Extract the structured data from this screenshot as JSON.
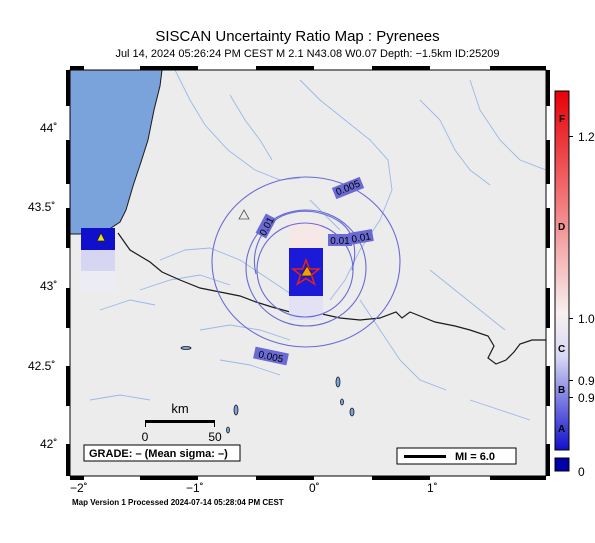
{
  "header": {
    "title": "SISCAN Uncertainty Ratio Map : Pyrenees",
    "subtitle": "Jul 14, 2024 05:26:24 PM CEST   M 2.1   N43.08 W0.07   Depth: −1.5km   ID:25209"
  },
  "map": {
    "lat_labels": [
      "44˚",
      "43.5˚",
      "43˚",
      "42.5˚",
      "42˚"
    ],
    "lon_labels": [
      "−2˚",
      "−1˚",
      "0˚",
      "1˚"
    ],
    "contour_labels": [
      "0.005",
      "0.01",
      "0.01",
      "0.01",
      "0.005"
    ],
    "scale": {
      "title": "km",
      "left": "0",
      "right": "50"
    },
    "grade_text": "GRADE: – (Mean sigma: –)",
    "mi_text": "MI = 6.0",
    "epicenter_marker": "star-icon",
    "station_markers": [
      "triangle-icon",
      "triangle-icon",
      "triangle-icon"
    ]
  },
  "colorbar": {
    "letters": [
      "F",
      "D",
      "C",
      "B",
      "A"
    ],
    "values": [
      "1.2",
      "1.0",
      "0.9",
      "0.9",
      "0"
    ],
    "colors": {
      "top": "#e8000a",
      "mid": "#f7f7f7",
      "bottom": "#0a0acc",
      "low_box": "#0000aa"
    }
  },
  "colors": {
    "sea": "#7aa3dc",
    "land": "#ececec",
    "contour": "#6a6ad4",
    "river": "#8fb2e6"
  },
  "footer": {
    "text": "Map Version 1 Processed 2024-07-14 05:28:04 PM CEST"
  }
}
